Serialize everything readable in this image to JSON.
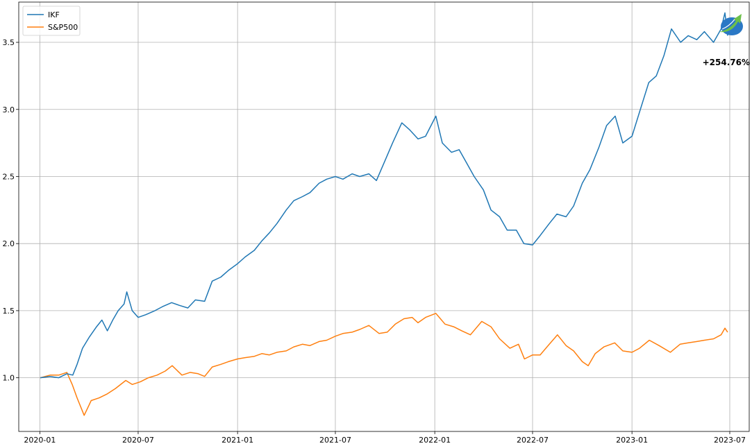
{
  "chart_data": {
    "type": "line",
    "x_range": [
      "2019-11-23",
      "2023-08-06"
    ],
    "ylim": [
      0.6,
      3.8
    ],
    "grid": true,
    "legend_placement": "top-left",
    "x_ticks": [
      "2020-01",
      "2020-07",
      "2021-01",
      "2021-07",
      "2022-01",
      "2022-07",
      "2023-01",
      "2023-07"
    ],
    "y_ticks": [
      1.0,
      1.5,
      2.0,
      2.5,
      3.0,
      3.5
    ],
    "y_tick_labels": [
      "1.0",
      "1.5",
      "2.0",
      "2.5",
      "3.0",
      "3.5"
    ],
    "annotation": {
      "text": "+254.76%",
      "x": "2023-06-27",
      "y": 3.55
    },
    "logo": {
      "icon": "rising-arrow-globe-logo",
      "colors": [
        "#2a78c5",
        "#6cc04a"
      ]
    },
    "series": [
      {
        "name": "IKF",
        "color": "#1f77b4",
        "points": [
          [
            "2020-01-02",
            1.0
          ],
          [
            "2020-01-20",
            1.01
          ],
          [
            "2020-02-05",
            1.0
          ],
          [
            "2020-02-20",
            1.03
          ],
          [
            "2020-03-02",
            1.02
          ],
          [
            "2020-03-10",
            1.1
          ],
          [
            "2020-03-20",
            1.22
          ],
          [
            "2020-04-01",
            1.3
          ],
          [
            "2020-04-15",
            1.38
          ],
          [
            "2020-04-25",
            1.43
          ],
          [
            "2020-05-05",
            1.35
          ],
          [
            "2020-05-15",
            1.43
          ],
          [
            "2020-05-25",
            1.5
          ],
          [
            "2020-06-05",
            1.55
          ],
          [
            "2020-06-10",
            1.64
          ],
          [
            "2020-06-20",
            1.5
          ],
          [
            "2020-07-01",
            1.45
          ],
          [
            "2020-07-15",
            1.47
          ],
          [
            "2020-08-01",
            1.5
          ],
          [
            "2020-08-15",
            1.53
          ],
          [
            "2020-09-01",
            1.56
          ],
          [
            "2020-09-15",
            1.54
          ],
          [
            "2020-10-01",
            1.52
          ],
          [
            "2020-10-15",
            1.58
          ],
          [
            "2020-11-01",
            1.57
          ],
          [
            "2020-11-15",
            1.72
          ],
          [
            "2020-12-01",
            1.75
          ],
          [
            "2020-12-15",
            1.8
          ],
          [
            "2021-01-01",
            1.85
          ],
          [
            "2021-01-15",
            1.9
          ],
          [
            "2021-02-01",
            1.95
          ],
          [
            "2021-02-15",
            2.02
          ],
          [
            "2021-03-01",
            2.08
          ],
          [
            "2021-03-15",
            2.15
          ],
          [
            "2021-04-01",
            2.25
          ],
          [
            "2021-04-15",
            2.32
          ],
          [
            "2021-05-01",
            2.35
          ],
          [
            "2021-05-15",
            2.38
          ],
          [
            "2021-06-01",
            2.45
          ],
          [
            "2021-06-15",
            2.48
          ],
          [
            "2021-07-01",
            2.5
          ],
          [
            "2021-07-15",
            2.48
          ],
          [
            "2021-08-01",
            2.52
          ],
          [
            "2021-08-15",
            2.5
          ],
          [
            "2021-09-01",
            2.52
          ],
          [
            "2021-09-15",
            2.47
          ],
          [
            "2021-10-01",
            2.62
          ],
          [
            "2021-10-15",
            2.75
          ],
          [
            "2021-11-01",
            2.9
          ],
          [
            "2021-11-15",
            2.85
          ],
          [
            "2021-12-01",
            2.78
          ],
          [
            "2021-12-15",
            2.8
          ],
          [
            "2022-01-03",
            2.95
          ],
          [
            "2022-01-15",
            2.75
          ],
          [
            "2022-02-01",
            2.68
          ],
          [
            "2022-02-15",
            2.7
          ],
          [
            "2022-03-01",
            2.6
          ],
          [
            "2022-03-15",
            2.5
          ],
          [
            "2022-04-01",
            2.4
          ],
          [
            "2022-04-15",
            2.25
          ],
          [
            "2022-05-01",
            2.2
          ],
          [
            "2022-05-15",
            2.1
          ],
          [
            "2022-06-01",
            2.1
          ],
          [
            "2022-06-15",
            2.0
          ],
          [
            "2022-07-01",
            1.99
          ],
          [
            "2022-07-15",
            2.06
          ],
          [
            "2022-08-01",
            2.15
          ],
          [
            "2022-08-15",
            2.22
          ],
          [
            "2022-09-01",
            2.2
          ],
          [
            "2022-09-15",
            2.28
          ],
          [
            "2022-10-01",
            2.45
          ],
          [
            "2022-10-15",
            2.55
          ],
          [
            "2022-11-01",
            2.72
          ],
          [
            "2022-11-15",
            2.88
          ],
          [
            "2022-12-01",
            2.95
          ],
          [
            "2022-12-15",
            2.75
          ],
          [
            "2023-01-01",
            2.8
          ],
          [
            "2023-01-15",
            2.98
          ],
          [
            "2023-02-01",
            3.2
          ],
          [
            "2023-02-15",
            3.25
          ],
          [
            "2023-03-01",
            3.4
          ],
          [
            "2023-03-15",
            3.6
          ],
          [
            "2023-04-01",
            3.5
          ],
          [
            "2023-04-15",
            3.55
          ],
          [
            "2023-05-01",
            3.52
          ],
          [
            "2023-05-15",
            3.58
          ],
          [
            "2023-06-01",
            3.5
          ],
          [
            "2023-06-15",
            3.6
          ],
          [
            "2023-06-22",
            3.72
          ],
          [
            "2023-06-27",
            3.55
          ]
        ]
      },
      {
        "name": "S&P500",
        "color": "#ff7f0e",
        "points": [
          [
            "2020-01-02",
            1.0
          ],
          [
            "2020-01-20",
            1.02
          ],
          [
            "2020-02-05",
            1.02
          ],
          [
            "2020-02-20",
            1.04
          ],
          [
            "2020-03-01",
            0.95
          ],
          [
            "2020-03-10",
            0.85
          ],
          [
            "2020-03-23",
            0.72
          ],
          [
            "2020-04-05",
            0.83
          ],
          [
            "2020-04-20",
            0.85
          ],
          [
            "2020-05-05",
            0.88
          ],
          [
            "2020-05-20",
            0.92
          ],
          [
            "2020-06-08",
            0.98
          ],
          [
            "2020-06-20",
            0.95
          ],
          [
            "2020-07-05",
            0.97
          ],
          [
            "2020-07-20",
            1.0
          ],
          [
            "2020-08-05",
            1.02
          ],
          [
            "2020-08-20",
            1.05
          ],
          [
            "2020-09-02",
            1.09
          ],
          [
            "2020-09-20",
            1.02
          ],
          [
            "2020-10-05",
            1.04
          ],
          [
            "2020-10-20",
            1.03
          ],
          [
            "2020-11-01",
            1.01
          ],
          [
            "2020-11-15",
            1.08
          ],
          [
            "2020-12-01",
            1.1
          ],
          [
            "2020-12-15",
            1.12
          ],
          [
            "2021-01-01",
            1.14
          ],
          [
            "2021-01-15",
            1.15
          ],
          [
            "2021-02-01",
            1.16
          ],
          [
            "2021-02-15",
            1.18
          ],
          [
            "2021-03-01",
            1.17
          ],
          [
            "2021-03-15",
            1.19
          ],
          [
            "2021-04-01",
            1.2
          ],
          [
            "2021-04-15",
            1.23
          ],
          [
            "2021-05-01",
            1.25
          ],
          [
            "2021-05-15",
            1.24
          ],
          [
            "2021-06-01",
            1.27
          ],
          [
            "2021-06-15",
            1.28
          ],
          [
            "2021-07-01",
            1.31
          ],
          [
            "2021-07-15",
            1.33
          ],
          [
            "2021-08-01",
            1.34
          ],
          [
            "2021-08-15",
            1.36
          ],
          [
            "2021-09-01",
            1.39
          ],
          [
            "2021-09-20",
            1.33
          ],
          [
            "2021-10-05",
            1.34
          ],
          [
            "2021-10-20",
            1.4
          ],
          [
            "2021-11-05",
            1.44
          ],
          [
            "2021-11-20",
            1.45
          ],
          [
            "2021-12-01",
            1.41
          ],
          [
            "2021-12-15",
            1.45
          ],
          [
            "2022-01-03",
            1.48
          ],
          [
            "2022-01-20",
            1.4
          ],
          [
            "2022-02-05",
            1.38
          ],
          [
            "2022-02-20",
            1.35
          ],
          [
            "2022-03-08",
            1.32
          ],
          [
            "2022-03-29",
            1.42
          ],
          [
            "2022-04-15",
            1.38
          ],
          [
            "2022-05-01",
            1.29
          ],
          [
            "2022-05-20",
            1.22
          ],
          [
            "2022-06-05",
            1.25
          ],
          [
            "2022-06-16",
            1.14
          ],
          [
            "2022-07-01",
            1.17
          ],
          [
            "2022-07-15",
            1.17
          ],
          [
            "2022-08-01",
            1.25
          ],
          [
            "2022-08-16",
            1.32
          ],
          [
            "2022-09-01",
            1.24
          ],
          [
            "2022-09-15",
            1.2
          ],
          [
            "2022-10-01",
            1.12
          ],
          [
            "2022-10-12",
            1.09
          ],
          [
            "2022-10-25",
            1.18
          ],
          [
            "2022-11-10",
            1.23
          ],
          [
            "2022-11-30",
            1.26
          ],
          [
            "2022-12-15",
            1.2
          ],
          [
            "2023-01-01",
            1.19
          ],
          [
            "2023-01-15",
            1.22
          ],
          [
            "2023-02-02",
            1.28
          ],
          [
            "2023-02-20",
            1.24
          ],
          [
            "2023-03-13",
            1.19
          ],
          [
            "2023-03-31",
            1.25
          ],
          [
            "2023-04-15",
            1.26
          ],
          [
            "2023-05-01",
            1.27
          ],
          [
            "2023-05-15",
            1.28
          ],
          [
            "2023-06-01",
            1.29
          ],
          [
            "2023-06-15",
            1.32
          ],
          [
            "2023-06-22",
            1.37
          ],
          [
            "2023-06-27",
            1.34
          ]
        ]
      }
    ]
  }
}
